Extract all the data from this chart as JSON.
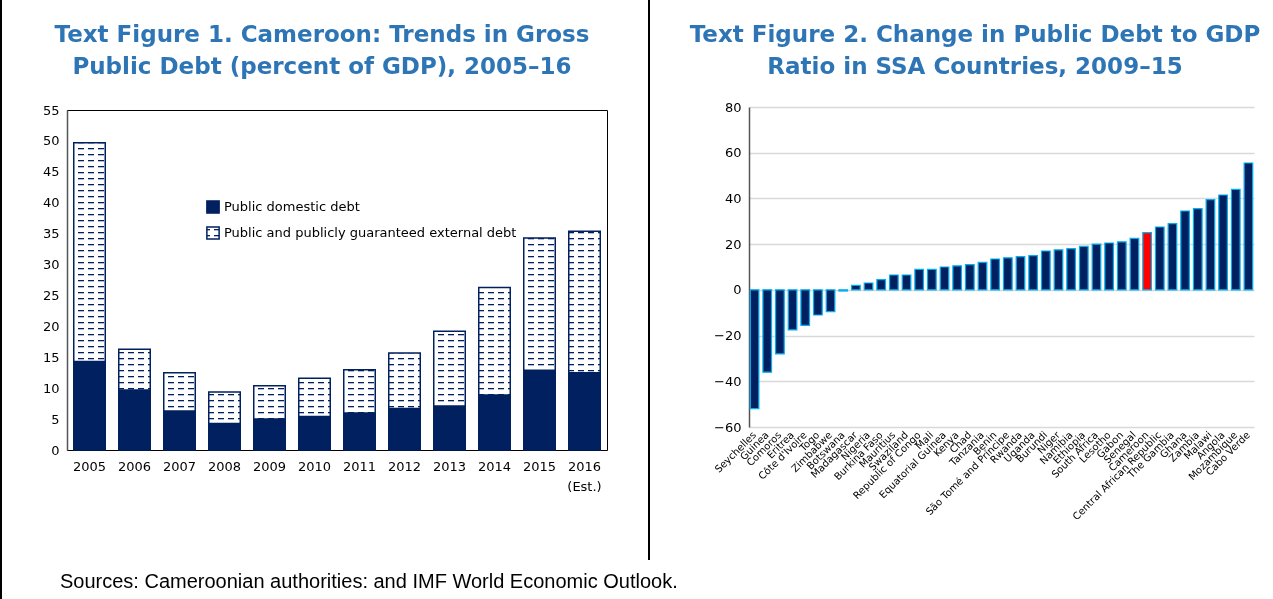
{
  "chart_data": [
    {
      "type": "bar",
      "title": "Text Figure 1. Cameroon: Trends in Gross Public Debt (percent of GDP), 2005–16",
      "stacked": true,
      "categories": [
        "2005",
        "2006",
        "2007",
        "2008",
        "2009",
        "2010",
        "2011",
        "2012",
        "2013",
        "2014",
        "2015",
        "2016\n(Est.)"
      ],
      "series": [
        {
          "name": "Public domestic debt",
          "color": "#002060",
          "values": [
            14.3,
            9.7,
            6.3,
            4.3,
            5.0,
            5.4,
            6.0,
            6.7,
            7.1,
            8.9,
            12.9,
            12.5
          ]
        },
        {
          "name": "Public and publicly guaranteed external debt",
          "color": "#002060",
          "values": [
            35.4,
            6.6,
            6.2,
            5.1,
            5.4,
            6.2,
            7.0,
            9.0,
            12.1,
            17.4,
            21.4,
            22.9
          ]
        }
      ],
      "ylim": [
        0,
        55
      ],
      "yticks": [
        0,
        5,
        10,
        15,
        20,
        25,
        30,
        35,
        40,
        45,
        50,
        55
      ],
      "grid": false,
      "legend": "top right",
      "annotations": [
        "Sources: Cameroonian authorities: and IMF World Economic Outlook."
      ]
    },
    {
      "type": "bar",
      "title": "Text Figure 2. Change in Public Debt to GDP Ratio in SSA Countries, 2009–15",
      "categories": [
        "Seychelles",
        "Guinea",
        "Comoros",
        "Eritrea",
        "Côte d'Ivoire",
        "Togo",
        "Zimbabwe",
        "Botswana",
        "Madagascar",
        "Nigeria",
        "Burkina Faso",
        "Mauritius",
        "Swaziland",
        "Republic of Congo",
        "Mali",
        "Equatorial Guinea",
        "Kenya",
        "Chad",
        "Tanzania",
        "Benin",
        "São Tomé and Príncipe",
        "Rwanda",
        "Uganda",
        "Burundi",
        "Niger",
        "Namibia",
        "Ethiopia",
        "South Africa",
        "Lesotho",
        "Gabon",
        "Senegal",
        "Cameroon",
        "Central African Republic",
        "The Gambia",
        "Ghana",
        "Zambia",
        "Malawi",
        "Angola",
        "Mozambique",
        "Cabo Verde"
      ],
      "values": [
        -52,
        -36,
        -28,
        -17.5,
        -15.5,
        -11,
        -9.5,
        -0.5,
        2,
        3,
        4.5,
        6.5,
        6.5,
        9,
        9,
        10,
        10.5,
        11,
        12,
        13.5,
        14,
        14.5,
        15,
        17,
        17.5,
        18,
        19,
        20,
        20.5,
        21,
        22.5,
        25,
        27.5,
        29,
        34.5,
        35.5,
        39.5,
        41.5,
        44,
        55.5
      ],
      "colors": [
        "#002060",
        "#002060",
        "#002060",
        "#002060",
        "#002060",
        "#002060",
        "#002060",
        "#002060",
        "#002060",
        "#002060",
        "#002060",
        "#002060",
        "#002060",
        "#002060",
        "#002060",
        "#002060",
        "#002060",
        "#002060",
        "#002060",
        "#002060",
        "#002060",
        "#002060",
        "#002060",
        "#002060",
        "#002060",
        "#002060",
        "#002060",
        "#002060",
        "#002060",
        "#002060",
        "#002060",
        "#ff0000",
        "#002060",
        "#002060",
        "#002060",
        "#002060",
        "#002060",
        "#002060",
        "#002060",
        "#002060"
      ],
      "ylim": [
        -60,
        80
      ],
      "yticks": [
        -60,
        -40,
        -20,
        0,
        20,
        40,
        60,
        80
      ],
      "grid": "y"
    }
  ]
}
